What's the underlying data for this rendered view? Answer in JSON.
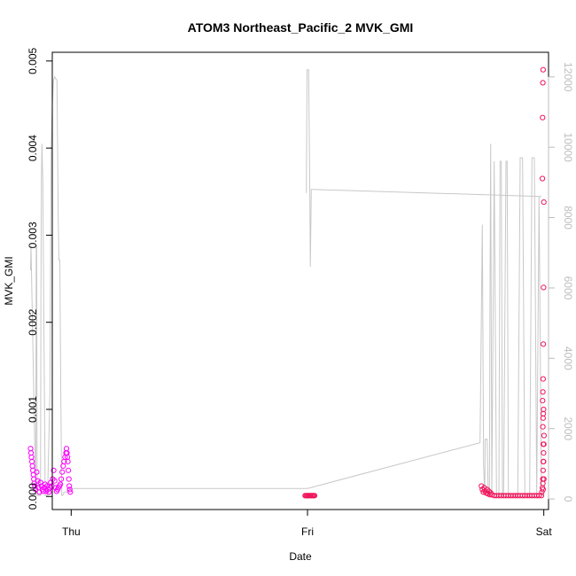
{
  "chart_data": {
    "type": "scatter",
    "title": "ATOM3 Northeast_Pacific_2 MVK_GMI",
    "xlabel": "Date",
    "ylabel": "MVK_GMI",
    "x_ticks": [
      "Thu",
      "Fri",
      "Sat"
    ],
    "xlim": [
      -0.08,
      2.02
    ],
    "ylim": [
      -0.00015,
      0.0051
    ],
    "y_ticks": [
      0.0,
      0.001,
      0.002,
      0.003,
      0.004,
      0.005
    ],
    "y_tick_labels": [
      "0.000",
      "0.001",
      "0.002",
      "0.003",
      "0.004",
      "0.005"
    ],
    "y2lim": [
      -300,
      12700
    ],
    "y2_ticks": [
      0,
      2000,
      4000,
      6000,
      8000,
      10000,
      12000
    ],
    "y2_tick_labels": [
      "0",
      "2000",
      "4000",
      "6000",
      "8000",
      "10000",
      "12000"
    ],
    "grid": false,
    "colors": {
      "line": "#c8c8c8",
      "points_early": "#ff00ff",
      "points_late": "#f0145a",
      "axis_right": "#bdbdbd"
    },
    "series": [
      {
        "axis": "left",
        "style": "points",
        "color": "#ff00ff",
        "x": [
          -0.172,
          -0.17,
          -0.168,
          -0.166,
          -0.164,
          -0.162,
          -0.16,
          -0.158,
          -0.156,
          -0.154,
          -0.15,
          -0.146,
          -0.142,
          -0.138,
          -0.134,
          -0.13,
          -0.126,
          -0.122,
          -0.118,
          -0.114,
          -0.11,
          -0.106,
          -0.102,
          -0.098,
          -0.094,
          -0.09,
          -0.086,
          -0.082,
          -0.078,
          -0.074,
          -0.07,
          -0.066,
          -0.062,
          -0.058,
          -0.054,
          -0.05,
          -0.046,
          -0.042,
          -0.038,
          -0.034,
          -0.03,
          -0.026,
          -0.022,
          -0.02,
          -0.018,
          -0.016,
          -0.014,
          -0.012,
          -0.01,
          -0.008,
          -0.006,
          -0.004
        ],
        "y": [
          0.00055,
          0.0005,
          0.00045,
          0.0004,
          0.00035,
          0.0003,
          0.00025,
          0.0002,
          0.00015,
          0.00012,
          8e-05,
          0.00028,
          0.00018,
          0.0001,
          5e-05,
          0.00016,
          0.00012,
          8e-05,
          6e-05,
          0.0001,
          0.00014,
          6e-05,
          0.00012,
          8e-05,
          5e-05,
          0.0001,
          0.00016,
          0.00012,
          0.0002,
          0.0003,
          0.00018,
          0.0001,
          6e-05,
          8e-05,
          0.0001,
          0.00012,
          0.00014,
          0.0002,
          0.00028,
          0.00035,
          0.0004,
          0.00045,
          0.0005,
          0.00055,
          0.0005,
          0.00045,
          0.0004,
          0.0003,
          0.0002,
          0.00012,
          8e-05,
          5e-05
        ]
      },
      {
        "axis": "left",
        "style": "points",
        "color": "#f0145a",
        "x": [
          0.99,
          0.994,
          0.998,
          1.002,
          1.006,
          1.01,
          1.014,
          1.018,
          1.022,
          1.026,
          1.03
        ],
        "y": [
          1e-05,
          1e-05,
          1e-05,
          1e-05,
          1e-05,
          1e-05,
          1e-05,
          1e-05,
          1e-05,
          1e-05,
          1e-05
        ]
      },
      {
        "axis": "left",
        "style": "points",
        "color": "#f0145a",
        "x": [
          1.736,
          1.74,
          1.744,
          1.748,
          1.752,
          1.756,
          1.76,
          1.764,
          1.768,
          1.772,
          1.776,
          1.78,
          1.79,
          1.8,
          1.81,
          1.82,
          1.83,
          1.84,
          1.85,
          1.86,
          1.87,
          1.88,
          1.89,
          1.9,
          1.91,
          1.92,
          1.93,
          1.94,
          1.95,
          1.96,
          1.97,
          1.98,
          1.99,
          1.992,
          1.994,
          1.996,
          1.997,
          1.998,
          1.999,
          2.0,
          2.001,
          1.996,
          1.997,
          1.998,
          1.999,
          1.995,
          1.996,
          1.997,
          1.998,
          1.999,
          2.0,
          1.994,
          1.995,
          1.996,
          1.997,
          1.998,
          1.999,
          2.0,
          1.996,
          1.997
        ],
        "y": [
          0.00012,
          8e-05,
          5e-05,
          0.0001,
          6e-05,
          4e-05,
          8e-05,
          3e-05,
          6e-05,
          2e-05,
          4e-05,
          2e-05,
          1e-05,
          1e-05,
          1e-05,
          1e-05,
          1e-05,
          1e-05,
          1e-05,
          1e-05,
          1e-05,
          1e-05,
          1e-05,
          1e-05,
          1e-05,
          1e-05,
          1e-05,
          1e-05,
          1e-05,
          1e-05,
          1e-05,
          1e-05,
          1e-05,
          5e-05,
          0.0001,
          0.0002,
          0.0003,
          0.0004,
          0.0005,
          0.0006,
          0.0007,
          0.0008,
          0.0009,
          0.00095,
          0.001,
          0.0011,
          0.0012,
          0.00135,
          0.00175,
          0.0024,
          0.00338,
          0.00365,
          0.00435,
          0.00475,
          0.0049,
          0.0006,
          0.0004,
          0.0002,
          0.00015,
          8e-05
        ]
      },
      {
        "axis": "right",
        "style": "line",
        "color": "#c8c8c8",
        "x": [
          -0.172,
          -0.17,
          -0.168,
          -0.15,
          -0.148,
          -0.146,
          -0.144,
          -0.14,
          -0.13,
          -0.128,
          -0.126,
          -0.124,
          -0.12,
          -0.11,
          -0.108,
          -0.1,
          -0.09,
          -0.085,
          -0.08,
          -0.075,
          -0.07,
          -0.06,
          -0.055,
          -0.052,
          -0.048,
          -0.044,
          -0.04,
          -0.036,
          -0.03,
          -0.028,
          -0.026,
          -0.024,
          -0.022,
          -0.02,
          -0.018,
          -0.016,
          -0.014,
          -0.012,
          -0.008,
          -0.004,
          0.0,
          0.03,
          0.5,
          1.0,
          1.73,
          1.74,
          1.745,
          1.75,
          1.752,
          1.76,
          1.765,
          1.77,
          1.772,
          1.775,
          1.78,
          1.79,
          1.8,
          1.81,
          1.815,
          1.82,
          1.825,
          1.83,
          1.84,
          1.845,
          1.85,
          1.86,
          1.87,
          1.88,
          1.89,
          1.9,
          1.91,
          1.92,
          1.93,
          1.94,
          1.95,
          1.96,
          1.97,
          1.98,
          1.99,
          1.995,
          2.0
        ],
        "y": [
          6500,
          7200,
          6500,
          100,
          7200,
          7200,
          100,
          100,
          100,
          6000,
          9000,
          10100,
          9000,
          100,
          100,
          100,
          3000,
          10000,
          11200,
          11900,
          12000,
          11900,
          8000,
          6800,
          6800,
          3000,
          100,
          100,
          200,
          200,
          200,
          200,
          200,
          200,
          200,
          300,
          300,
          300,
          300,
          300,
          300,
          300,
          300,
          300,
          1600,
          7800,
          1000,
          100,
          1700,
          1700,
          100,
          100,
          5500,
          10100,
          100,
          9600,
          100,
          100,
          9600,
          9600,
          100,
          100,
          9600,
          9600,
          100,
          100,
          100,
          100,
          100,
          9700,
          9700,
          100,
          100,
          100,
          9700,
          9700,
          100,
          8600,
          100,
          100,
          100
        ]
      },
      {
        "axis": "right",
        "style": "line",
        "color": "#c8c8c8",
        "x": [
          0.995,
          0.998,
          1.005,
          1.01,
          1.012,
          1.016,
          1.02,
          1.99
        ],
        "y": [
          8700,
          12200,
          12200,
          8500,
          6600,
          8800,
          8800,
          8600
        ]
      }
    ]
  }
}
